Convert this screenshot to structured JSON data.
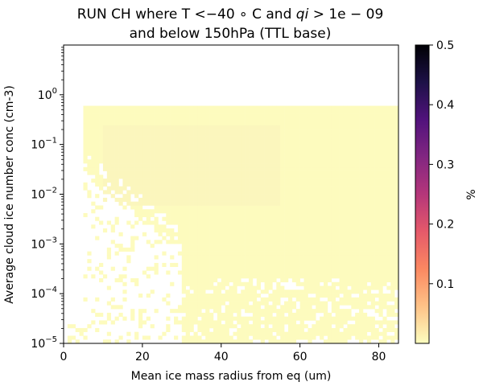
{
  "chart_data": {
    "type": "heatmap",
    "title_prefix": "RUN CH where T",
    "title_mid": " and ",
    "title_suffix": "",
    "title_line2": "and below 150hPa (TTL base)",
    "condition_t": "<−40 ∘ C",
    "condition_qi_var": "qi",
    "condition_qi": "> 1e − 09",
    "xlabel": "Mean ice mass radius from eq (um)",
    "ylabel": "Average cloud ice number conc (cm-3)",
    "x_scale": "linear",
    "y_scale": "log",
    "xlim": [
      0,
      85
    ],
    "ylim": [
      1e-05,
      10
    ],
    "x_ticks": [
      "0",
      "20",
      "40",
      "60",
      "80"
    ],
    "y_ticks": [
      {
        "value": 1e-05,
        "base": "10",
        "exp": "−5"
      },
      {
        "value": 0.0001,
        "base": "10",
        "exp": "−4"
      },
      {
        "value": 0.001,
        "base": "10",
        "exp": "−3"
      },
      {
        "value": 0.01,
        "base": "10",
        "exp": "−2"
      },
      {
        "value": 0.1,
        "base": "10",
        "exp": "−1"
      },
      {
        "value": 1,
        "base": "10",
        "exp": "0"
      }
    ],
    "colorbar": {
      "label": "%",
      "range": [
        0,
        0.5
      ],
      "ticks": [
        "0.1",
        "0.2",
        "0.3",
        "0.4",
        "0.5"
      ],
      "tick_values": [
        0.1,
        0.2,
        0.3,
        0.4,
        0.5
      ],
      "colormap": "magma_r",
      "stops": [
        "#fcfdbf",
        "#fec287",
        "#fb8861",
        "#e5596a",
        "#b5367a",
        "#822681",
        "#51127c",
        "#1d1147",
        "#000004"
      ]
    },
    "field": {
      "value_range_estimate": [
        0.0,
        0.02
      ],
      "dominant_color": "#fdfbbe",
      "x_extent": [
        0,
        85
      ],
      "y_top": 0.6,
      "description_of_coverage": "dense at low radius except sparse empty cells below ~1e-2 for radius < 30"
    }
  }
}
